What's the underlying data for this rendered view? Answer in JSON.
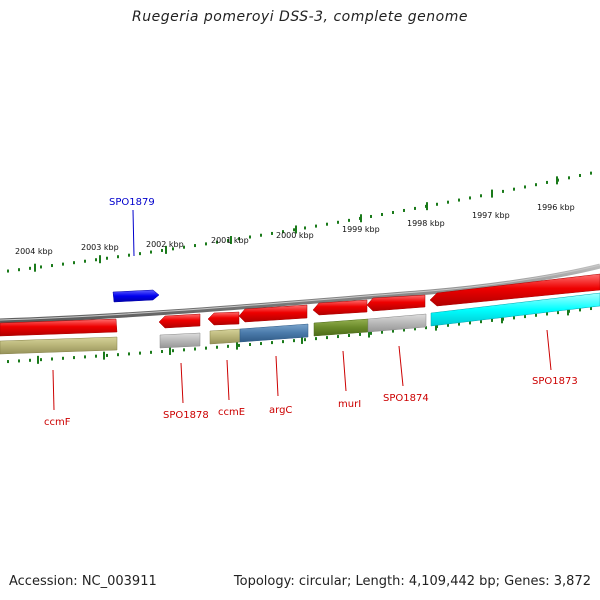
{
  "title": "Ruegeria pomeroyi DSS-3, complete genome",
  "footer": {
    "accession": "Accession: NC_003911",
    "summary": "Topology: circular; Length: 4,109,442 bp; Genes: 3,872"
  },
  "kbp_labels": [
    "2004 kbp",
    "2003 kbp",
    "2002 kbp",
    "2001 kbp",
    "2000 kbp",
    "1999 kbp",
    "1998 kbp",
    "1997 kbp",
    "1996 kbp"
  ],
  "gene_labels": {
    "spo1879": "SPO1879",
    "ccmF": "ccmF",
    "spo1878": "SPO1878",
    "ccmE": "ccmE",
    "argC": "argC",
    "murI": "murI",
    "spo1874": "SPO1874",
    "spo1873": "SPO1873"
  },
  "colors": {
    "backbone": "#888888",
    "forward_gene": "#0000ee",
    "reverse_gene": "#ee0000",
    "label_forward": "#0000cc",
    "label_reverse": "#cc0000",
    "tick": "#1a7a1a",
    "ccmF_product": "#b8b478",
    "spo1878_product": "#b8b8b8",
    "ccmE_product": "#b8b478",
    "argC_product": "#4a7aaa",
    "murI_product": "#6a8a2a",
    "spo1874_product": "#b8b8b8",
    "spo1873_product": "#00ffff"
  }
}
